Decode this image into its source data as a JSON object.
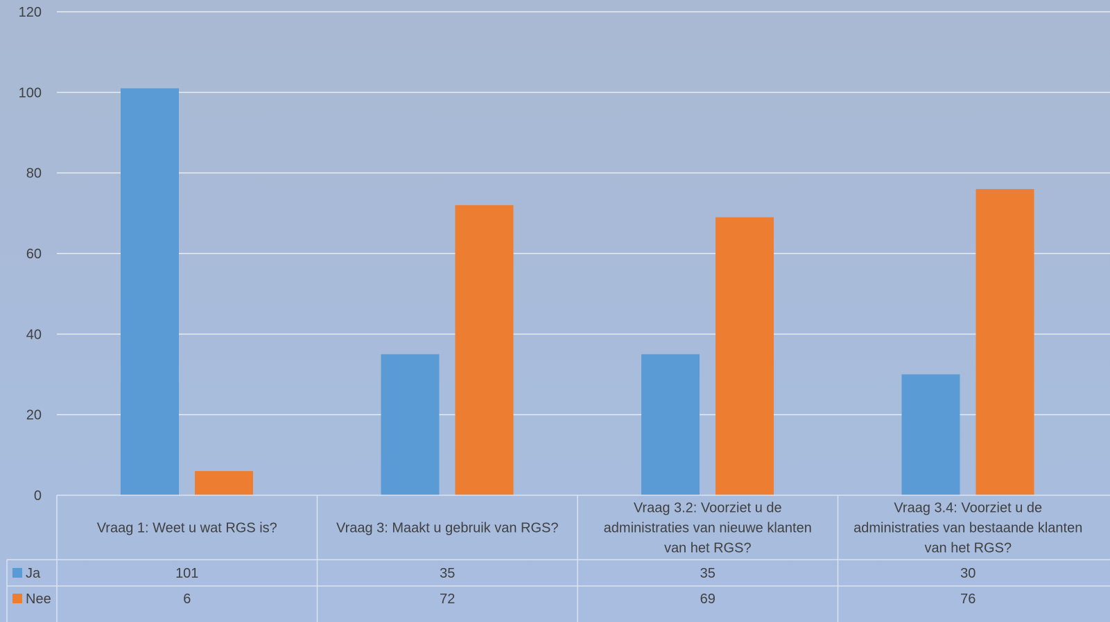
{
  "chart_data": {
    "type": "bar",
    "categories": [
      [
        "Vraag 1: Weet u wat RGS is?"
      ],
      [
        "Vraag 3: Maakt u gebruik van RGS?"
      ],
      [
        "Vraag 3.2: Voorziet u de",
        "administraties van nieuwe klanten",
        "van het RGS?"
      ],
      [
        "Vraag 3.4: Voorziet u de",
        "administraties van bestaande klanten",
        "van het RGS?"
      ]
    ],
    "series": [
      {
        "name": "Ja",
        "values": [
          101,
          35,
          35,
          30
        ],
        "color": "#5b9bd5"
      },
      {
        "name": "Nee",
        "values": [
          6,
          72,
          69,
          76
        ],
        "color": "#ed7d31"
      }
    ],
    "ylim": [
      0,
      120
    ],
    "yticks": [
      0,
      20,
      40,
      60,
      80,
      100,
      120
    ],
    "grid": true,
    "legend": "data-table"
  }
}
